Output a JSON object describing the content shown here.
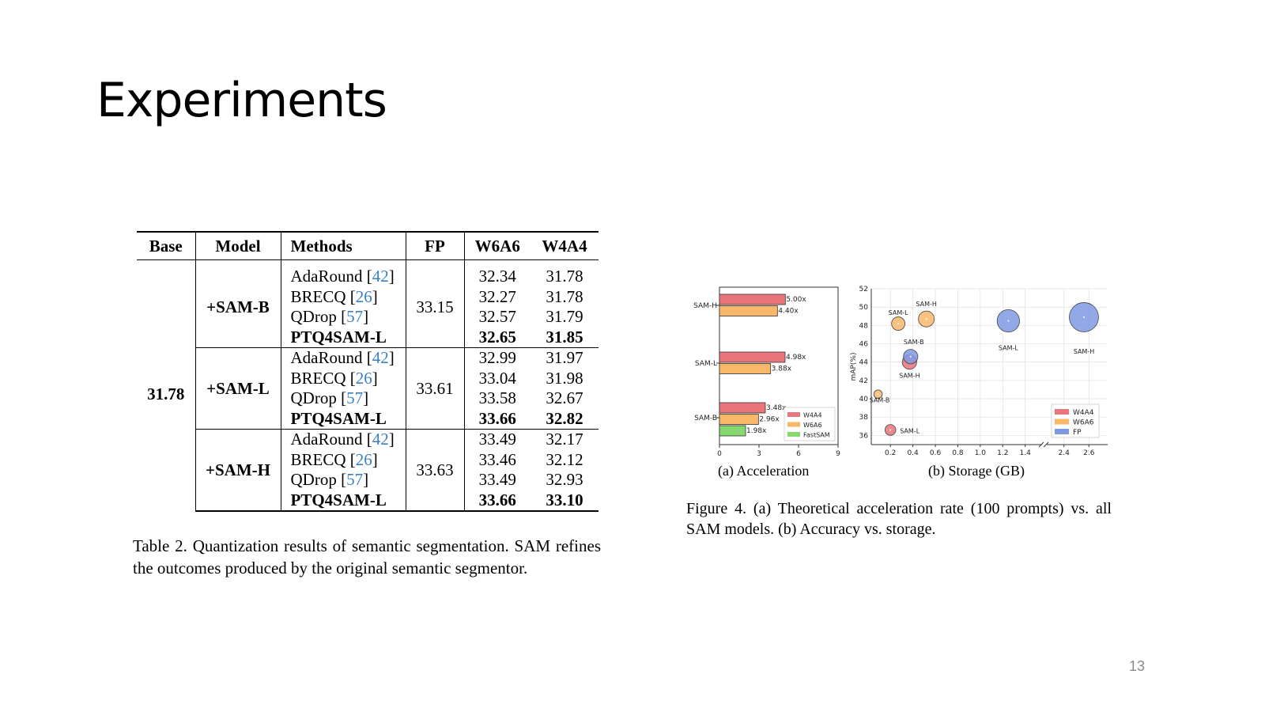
{
  "slide": {
    "title": "Experiments",
    "page_number": "13"
  },
  "table": {
    "headers": [
      "Base",
      "Model",
      "Methods",
      "FP",
      "W6A6",
      "W4A4"
    ],
    "base": "31.78",
    "groups": [
      {
        "model": "+SAM-B",
        "fp": "33.15",
        "rows": [
          {
            "method": "AdaRound",
            "cite": "42",
            "w6a6": "32.34",
            "w4a4": "31.78",
            "bold": false
          },
          {
            "method": "BRECQ",
            "cite": "26",
            "w6a6": "32.27",
            "w4a4": "31.78",
            "bold": false
          },
          {
            "method": "QDrop",
            "cite": "57",
            "w6a6": "32.57",
            "w4a4": "31.79",
            "bold": false
          },
          {
            "method": "PTQ4SAM-L",
            "cite": "",
            "w6a6": "32.65",
            "w4a4": "31.85",
            "bold": true
          }
        ]
      },
      {
        "model": "+SAM-L",
        "fp": "33.61",
        "rows": [
          {
            "method": "AdaRound",
            "cite": "42",
            "w6a6": "32.99",
            "w4a4": "31.97",
            "bold": false
          },
          {
            "method": "BRECQ",
            "cite": "26",
            "w6a6": "33.04",
            "w4a4": "31.98",
            "bold": false
          },
          {
            "method": "QDrop",
            "cite": "57",
            "w6a6": "33.58",
            "w4a4": "32.67",
            "bold": false
          },
          {
            "method": "PTQ4SAM-L",
            "cite": "",
            "w6a6": "33.66",
            "w4a4": "32.82",
            "bold": true
          }
        ]
      },
      {
        "model": "+SAM-H",
        "fp": "33.63",
        "rows": [
          {
            "method": "AdaRound",
            "cite": "42",
            "w6a6": "33.49",
            "w4a4": "32.17",
            "bold": false
          },
          {
            "method": "BRECQ",
            "cite": "26",
            "w6a6": "33.46",
            "w4a4": "32.12",
            "bold": false
          },
          {
            "method": "QDrop",
            "cite": "57",
            "w6a6": "33.49",
            "w4a4": "32.93",
            "bold": false
          },
          {
            "method": "PTQ4SAM-L",
            "cite": "",
            "w6a6": "33.66",
            "w4a4": "33.10",
            "bold": true
          }
        ]
      }
    ],
    "caption": "Table 2.  Quantization results of semantic segmentation.  SAM refines the outcomes produced by the original semantic segmentor."
  },
  "figure": {
    "caption": "Figure 4.  (a) Theoretical acceleration rate (100 prompts) vs.  all SAM models. (b) Accuracy vs. storage.",
    "subcaption_a": "(a) Acceleration",
    "subcaption_b": "(b) Storage (GB)"
  },
  "chart_data": [
    {
      "type": "bar",
      "orientation": "horizontal",
      "categories": [
        "SAM-H",
        "SAM-L",
        "SAM-B"
      ],
      "series": [
        {
          "name": "W4A4",
          "values": [
            5.0,
            4.98,
            3.48
          ],
          "labels": [
            "5.00x",
            "4.98x",
            "3.48x"
          ],
          "color": "#e8767a"
        },
        {
          "name": "W6A6",
          "values": [
            4.4,
            3.88,
            2.96
          ],
          "labels": [
            "4.40x",
            "3.88x",
            "2.96x"
          ],
          "color": "#f9b76a"
        },
        {
          "name": "FastSAM",
          "values": [
            null,
            null,
            1.98
          ],
          "labels": [
            "",
            "",
            "1.98x"
          ],
          "color": "#86d96e"
        }
      ],
      "xlim": [
        0,
        9
      ],
      "xticks": [
        "0",
        "3",
        "6",
        "9"
      ],
      "legend": "bottom-right"
    },
    {
      "type": "scatter",
      "subtype": "bubble",
      "ylabel": "mAP(%)",
      "ylim": [
        35,
        52
      ],
      "yticks": [
        "36",
        "38",
        "40",
        "42",
        "44",
        "46",
        "48",
        "50",
        "52"
      ],
      "xticks": [
        "0.2",
        "0.4",
        "0.6",
        "0.8",
        "1.0",
        "1.2",
        "1.4",
        "2.4",
        "2.6"
      ],
      "x_axis_broken": true,
      "grid": true,
      "legend": "bottom-right",
      "series": [
        {
          "name": "W4A4",
          "color": "#e8767a",
          "points": [
            {
              "label": "SAM-L",
              "x": 0.2,
              "y": 36.6,
              "size": 1.3
            },
            {
              "label": "SAM-H",
              "x": 0.37,
              "y": 44.0,
              "size": 2.3
            }
          ]
        },
        {
          "name": "W6A6",
          "color": "#f9b76a",
          "points": [
            {
              "label": "SAM-B",
              "x": 0.09,
              "y": 40.5,
              "size": 0.8
            },
            {
              "label": "SAM-L",
              "x": 0.27,
              "y": 48.2,
              "size": 2.0
            },
            {
              "label": "SAM-H",
              "x": 0.52,
              "y": 48.7,
              "size": 2.8
            }
          ]
        },
        {
          "name": "FP",
          "color": "#8099e3",
          "points": [
            {
              "label": "SAM-B",
              "x": 0.38,
              "y": 44.6,
              "size": 2.3
            },
            {
              "label": "SAM-L",
              "x": 1.25,
              "y": 48.5,
              "size": 5.6
            },
            {
              "label": "SAM-H",
              "x": 2.56,
              "y": 48.9,
              "size": 9.5
            }
          ]
        }
      ]
    }
  ]
}
